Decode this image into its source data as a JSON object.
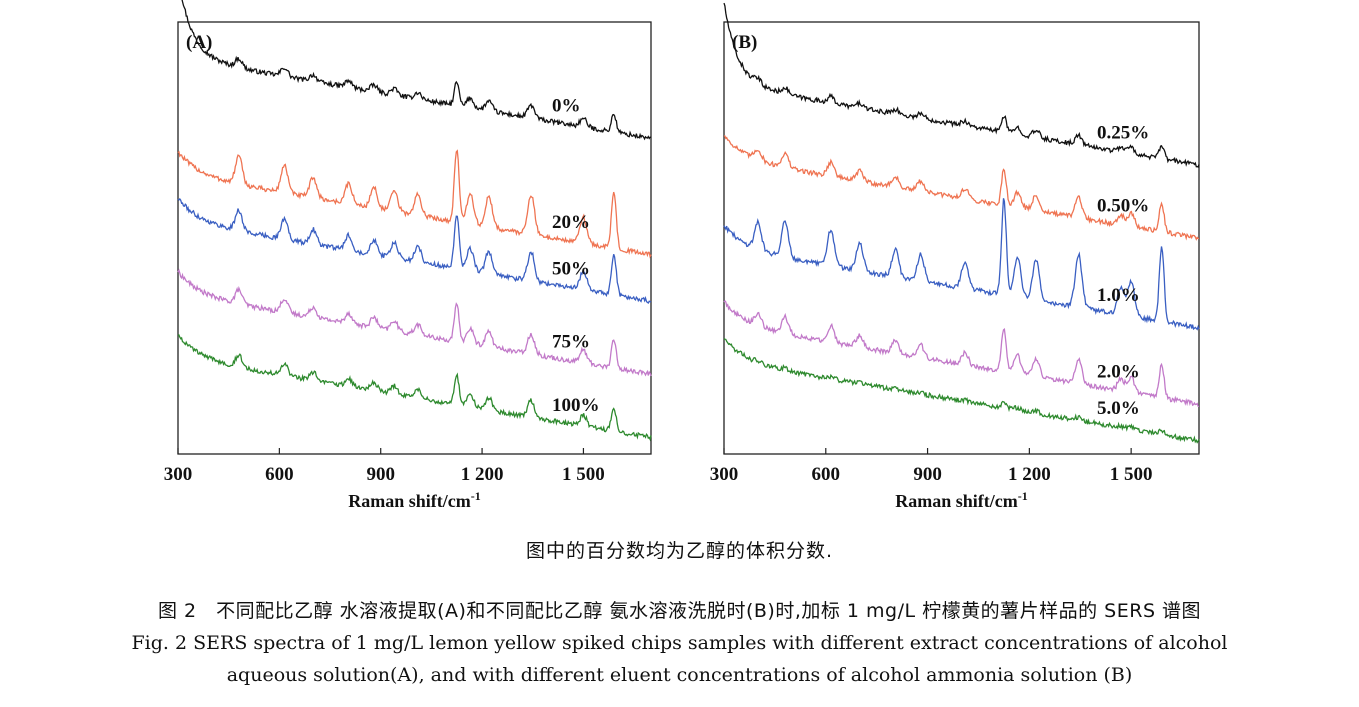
{
  "chart_data": [
    {
      "type": "line",
      "panel_label": "(A)",
      "xlabel": "Raman shift/cm",
      "xlabel_sup": "-1",
      "xlim": [
        300,
        1700
      ],
      "x_ticks": [
        300,
        600,
        900,
        1200,
        1500
      ],
      "x_tick_labels": [
        "300",
        "600",
        "900",
        "1 200",
        "1 500"
      ],
      "y_ticks_shown": false,
      "grid": false,
      "peaks_cm-1": [
        480,
        615,
        700,
        805,
        880,
        940,
        1010,
        1125,
        1165,
        1220,
        1345,
        1500,
        1590
      ],
      "series": [
        {
          "name": "0%",
          "color": "#111111",
          "offset": 4.55,
          "intensity": 0.35,
          "start_rise": 1.0
        },
        {
          "name": "20%",
          "color": "#ef7452",
          "offset": 2.8,
          "intensity": 1.1,
          "start_rise": 0.0
        },
        {
          "name": "50%",
          "color": "#3a5fc2",
          "offset": 2.1,
          "intensity": 0.8,
          "start_rise": 0.0
        },
        {
          "name": "75%",
          "color": "#c27ac9",
          "offset": 1.0,
          "intensity": 0.55,
          "start_rise": 0.0
        },
        {
          "name": "100%",
          "color": "#2e8a2e",
          "offset": 0.05,
          "intensity": 0.45,
          "start_rise": 0.0
        }
      ]
    },
    {
      "type": "line",
      "panel_label": "(B)",
      "xlabel": "Raman shift/cm",
      "xlabel_sup": "-1",
      "xlim": [
        300,
        1700
      ],
      "x_ticks": [
        300,
        600,
        900,
        1200,
        1500
      ],
      "x_tick_labels": [
        "300",
        "600",
        "900",
        "1 200",
        "1 500"
      ],
      "y_ticks_shown": false,
      "grid": false,
      "peaks_cm-1": [
        400,
        480,
        615,
        700,
        805,
        880,
        1010,
        1125,
        1165,
        1220,
        1345,
        1470,
        1500,
        1590
      ],
      "series": [
        {
          "name": "0.25%",
          "color": "#111111",
          "offset": 4.15,
          "intensity": 0.25,
          "start_rise": 1.0
        },
        {
          "name": "0.50%",
          "color": "#ef7452",
          "offset": 3.05,
          "intensity": 0.55,
          "start_rise": 0.0
        },
        {
          "name": "1.0%",
          "color": "#3a5fc2",
          "offset": 1.7,
          "intensity": 1.45,
          "start_rise": 0.0
        },
        {
          "name": "2.0%",
          "color": "#c27ac9",
          "offset": 0.55,
          "intensity": 0.65,
          "start_rise": 0.0
        },
        {
          "name": "5.0%",
          "color": "#2e8a2e",
          "offset": 0.0,
          "intensity": 0.08,
          "start_rise": 0.0
        }
      ]
    }
  ],
  "note": "图中的百分数均为乙醇的体积分数.",
  "caption": {
    "zh": "图 2　不同配比乙醇 水溶液提取(A)和不同配比乙醇 氨水溶液洗脱时(B)时,加标 1 mg/L 柠檬黄的薯片样品的 SERS 谱图",
    "en_line1": "Fig. 2  SERS spectra of 1 mg/L lemon yellow spiked chips samples with different extract concentrations of alcohol",
    "en_line2": "aqueous solution(A), and with different eluent concentrations of alcohol ammonia solution (B)"
  }
}
